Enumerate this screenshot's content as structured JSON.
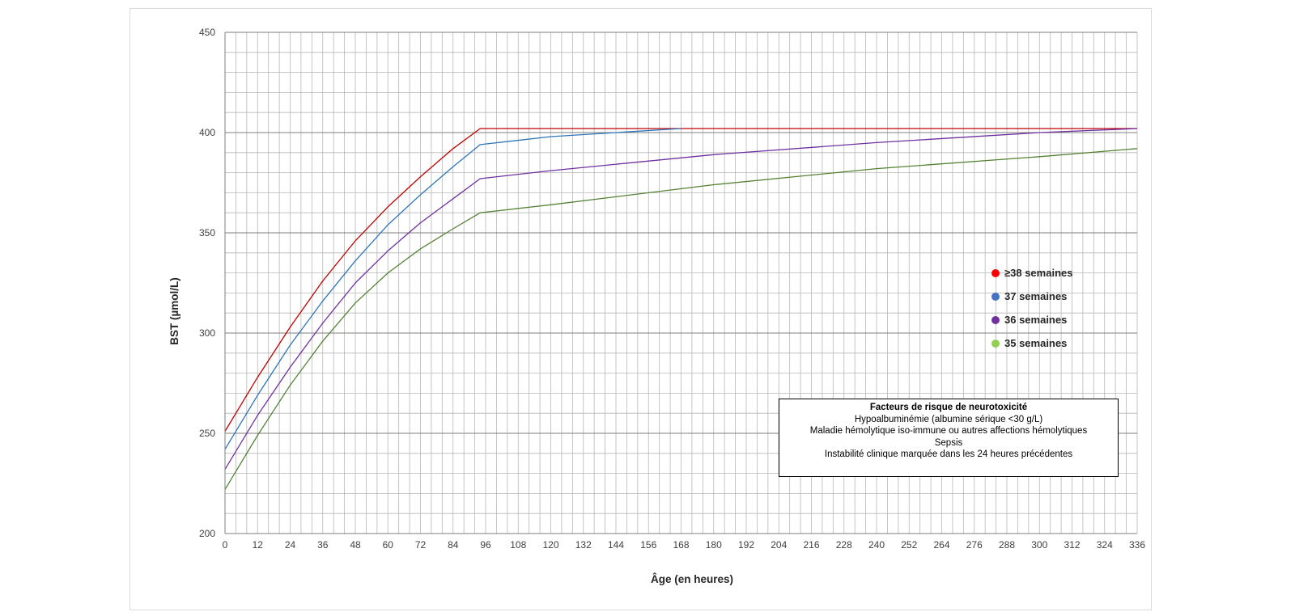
{
  "chart_data": {
    "type": "line",
    "title": "",
    "xlabel": "Âge (en heures)",
    "ylabel": "BST (µmol/L)",
    "xlim": [
      0,
      336
    ],
    "ylim": [
      200,
      450
    ],
    "x_ticks": [
      0,
      12,
      24,
      36,
      48,
      60,
      72,
      84,
      96,
      108,
      120,
      132,
      144,
      156,
      168,
      180,
      192,
      204,
      216,
      228,
      240,
      252,
      264,
      276,
      288,
      300,
      312,
      324,
      336
    ],
    "y_ticks": [
      200,
      250,
      300,
      350,
      400,
      450
    ],
    "grid": true,
    "legend_position": "right",
    "series": [
      {
        "name": "≥38 semaines",
        "color": "#c00000",
        "legend_color": "#ff0000",
        "x": [
          0,
          12,
          24,
          36,
          48,
          60,
          72,
          84,
          94,
          336
        ],
        "y": [
          251,
          278,
          303,
          326,
          346,
          363,
          378,
          392,
          402,
          402
        ]
      },
      {
        "name": "37 semaines",
        "color": "#2e75b6",
        "legend_color": "#4472c4",
        "x": [
          0,
          12,
          24,
          36,
          48,
          60,
          72,
          84,
          94,
          120,
          144,
          168
        ],
        "y": [
          242,
          269,
          294,
          316,
          336,
          354,
          369,
          383,
          394,
          398,
          400,
          402
        ]
      },
      {
        "name": "36 semaines",
        "color": "#7030a0",
        "legend_color": "#7030a0",
        "x": [
          0,
          12,
          24,
          36,
          48,
          60,
          72,
          84,
          94,
          120,
          180,
          240,
          300,
          336
        ],
        "y": [
          232,
          259,
          283,
          305,
          325,
          341,
          355,
          367,
          377,
          381,
          389,
          395,
          400,
          402
        ]
      },
      {
        "name": "35 semaines",
        "color": "#548235",
        "legend_color": "#92d050",
        "x": [
          0,
          12,
          24,
          36,
          48,
          60,
          72,
          84,
          94,
          120,
          180,
          240,
          300,
          336
        ],
        "y": [
          222,
          249,
          274,
          296,
          315,
          330,
          342,
          352,
          360,
          364,
          374,
          382,
          388,
          392
        ]
      }
    ],
    "annotation": {
      "title": "Facteurs de risque de neurotoxicité",
      "lines": [
        "Hypoalbuminémie (albumine sérique <30 g/L)",
        "Maladie hémolytique iso-immune ou autres affections hémolytiques",
        "Sepsis",
        "Instabilité clinique marquée dans les 24 heures précédentes"
      ]
    }
  }
}
